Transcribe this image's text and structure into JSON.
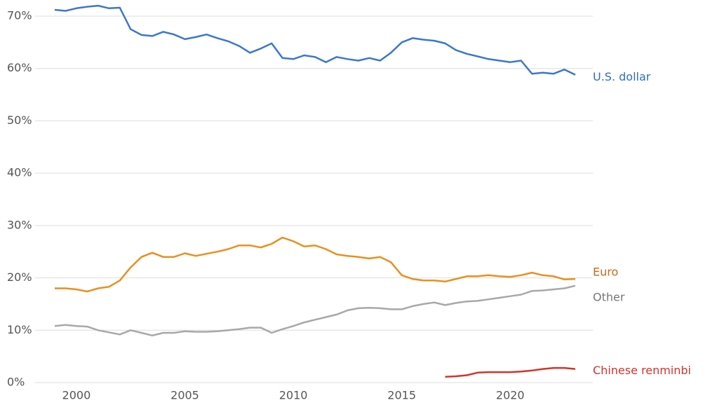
{
  "chart_data": {
    "type": "line",
    "x": [
      1999,
      1999.5,
      2000,
      2000.5,
      2001,
      2001.5,
      2002,
      2002.5,
      2003,
      2003.5,
      2004,
      2004.5,
      2005,
      2005.5,
      2006,
      2006.5,
      2007,
      2007.5,
      2008,
      2008.5,
      2009,
      2009.5,
      2010,
      2010.5,
      2011,
      2011.5,
      2012,
      2012.5,
      2013,
      2013.5,
      2014,
      2014.5,
      2015,
      2015.5,
      2016,
      2016.5,
      2017,
      2017.5,
      2018,
      2018.5,
      2019,
      2019.5,
      2020,
      2020.5,
      2021,
      2021.5,
      2022,
      2022.5,
      2023
    ],
    "series": [
      {
        "name": "U.S. dollar",
        "color": "#3a78c9",
        "label_color": "#2f6fbf",
        "values": [
          71.2,
          71.0,
          71.5,
          71.8,
          72.0,
          71.5,
          71.6,
          67.5,
          66.4,
          66.2,
          67.0,
          66.5,
          65.6,
          66.0,
          66.5,
          65.8,
          65.2,
          64.3,
          63.0,
          63.8,
          64.8,
          62.0,
          61.8,
          62.5,
          62.2,
          61.2,
          62.2,
          61.8,
          61.5,
          62.0,
          61.5,
          63.0,
          65.0,
          65.8,
          65.5,
          65.3,
          64.8,
          63.5,
          62.8,
          62.3,
          61.8,
          61.5,
          61.2,
          61.5,
          59.0,
          59.2,
          59.0,
          59.8,
          58.8
        ]
      },
      {
        "name": "Euro",
        "color": "#e8901e",
        "label_color": "#c8691a",
        "values": [
          18.0,
          18.0,
          17.8,
          17.4,
          18.0,
          18.3,
          19.5,
          22.0,
          24.0,
          24.8,
          24.0,
          24.0,
          24.7,
          24.2,
          24.6,
          25.0,
          25.5,
          26.2,
          26.2,
          25.8,
          26.5,
          27.7,
          27.0,
          26.0,
          26.2,
          25.5,
          24.5,
          24.2,
          24.0,
          23.7,
          24.0,
          23.0,
          20.5,
          19.8,
          19.5,
          19.5,
          19.3,
          19.8,
          20.3,
          20.3,
          20.5,
          20.3,
          20.2,
          20.5,
          21.0,
          20.5,
          20.3,
          19.7,
          19.8
        ]
      },
      {
        "name": "Other",
        "color": "#a8a8a8",
        "label_color": "#777777",
        "values": [
          10.8,
          11.0,
          10.8,
          10.7,
          10.0,
          9.6,
          9.2,
          10.0,
          9.5,
          9.0,
          9.5,
          9.5,
          9.8,
          9.7,
          9.7,
          9.8,
          10.0,
          10.2,
          10.5,
          10.5,
          9.5,
          10.2,
          10.8,
          11.5,
          12.0,
          12.5,
          13.0,
          13.8,
          14.2,
          14.3,
          14.2,
          14.0,
          14.0,
          14.6,
          15.0,
          15.3,
          14.8,
          15.2,
          15.5,
          15.6,
          15.9,
          16.2,
          16.5,
          16.8,
          17.5,
          17.6,
          17.8,
          18.0,
          18.5
        ]
      },
      {
        "name": "Chinese renminbi",
        "color": "#d0352b",
        "label_color": "#d0352b",
        "values": [
          null,
          null,
          null,
          null,
          null,
          null,
          null,
          null,
          null,
          null,
          null,
          null,
          null,
          null,
          null,
          null,
          null,
          null,
          null,
          null,
          null,
          null,
          null,
          null,
          null,
          null,
          null,
          null,
          null,
          null,
          null,
          null,
          null,
          null,
          null,
          null,
          1.1,
          1.2,
          1.4,
          1.9,
          2.0,
          2.0,
          2.0,
          2.1,
          2.3,
          2.6,
          2.8,
          2.8,
          2.6
        ]
      }
    ],
    "xlim": [
      1999,
      2023
    ],
    "xticks": [
      2000,
      2005,
      2010,
      2015,
      2020
    ],
    "ylim": [
      0,
      70
    ],
    "yticks": [
      {
        "value": 0,
        "label": "0%"
      },
      {
        "value": 10,
        "label": "10%"
      },
      {
        "value": 20,
        "label": "20%"
      },
      {
        "value": 30,
        "label": "30%"
      },
      {
        "value": 40,
        "label": "40%"
      },
      {
        "value": 50,
        "label": "50%"
      },
      {
        "value": 60,
        "label": "60%"
      },
      {
        "value": 70,
        "label": "70%"
      }
    ],
    "grid": true
  }
}
